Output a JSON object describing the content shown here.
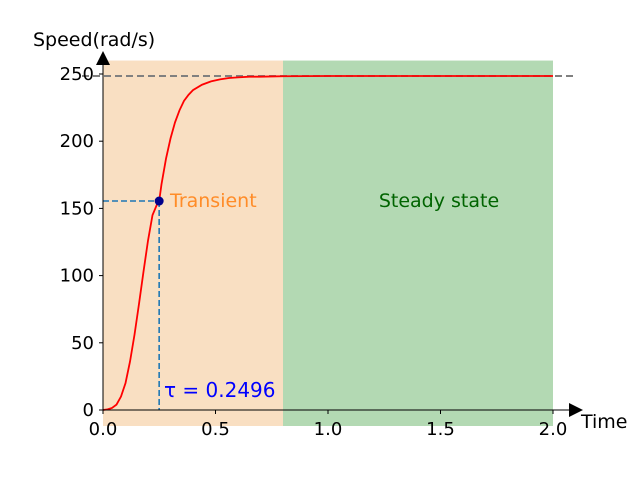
{
  "chart_data": {
    "type": "line",
    "title": "",
    "xlabel": "Time",
    "ylabel": "Speed(rad/s)",
    "xlim": [
      0.0,
      2.0
    ],
    "ylim": [
      0,
      260
    ],
    "x_ticks": [
      0.0,
      0.5,
      1.0,
      1.5,
      2.0
    ],
    "x_tick_labels": [
      "0.0",
      "0.5",
      "1.0",
      "1.5",
      "2.0"
    ],
    "y_ticks": [
      0,
      50,
      100,
      150,
      200,
      250
    ],
    "y_tick_labels": [
      "0",
      "50",
      "100",
      "150",
      "200",
      "250"
    ],
    "grid": false,
    "series": [
      {
        "color": "#ff0000",
        "x": [
          0.0,
          0.02,
          0.04,
          0.06,
          0.08,
          0.1,
          0.12,
          0.14,
          0.16,
          0.18,
          0.2,
          0.22,
          0.24,
          0.2496,
          0.26,
          0.28,
          0.3,
          0.32,
          0.34,
          0.36,
          0.38,
          0.4,
          0.44,
          0.48,
          0.52,
          0.56,
          0.6,
          0.65,
          0.7,
          0.75,
          0.8,
          0.9,
          1.0,
          1.2,
          1.4,
          1.6,
          1.8,
          2.0
        ],
        "values": [
          0,
          0.5,
          1.5,
          4,
          10,
          20,
          36,
          56,
          79,
          103,
          126,
          145,
          153,
          155.5,
          168,
          187,
          202,
          214,
          223,
          230,
          234.5,
          238,
          242,
          244.5,
          246,
          247,
          247.5,
          248,
          248,
          248.2,
          248.3,
          248.4,
          248.5,
          248.5,
          248.5,
          248.5,
          248.5,
          248.5
        ]
      }
    ],
    "regions": [
      {
        "label": "Transient",
        "x_start": 0.0,
        "x_end": 0.8,
        "color": "#f9dfc2",
        "label_color": "#ff8c28"
      },
      {
        "label": "Steady state",
        "x_start": 0.8,
        "x_end": 2.0,
        "color": "#b3d9b3",
        "label_color": "#006400"
      }
    ],
    "steady_state_value": 248.5,
    "time_constant": {
      "x": 0.2496,
      "y": 155.5,
      "label": "τ = 0.2496",
      "marker_color": "#00008b",
      "label_color": "#0000ff"
    }
  }
}
